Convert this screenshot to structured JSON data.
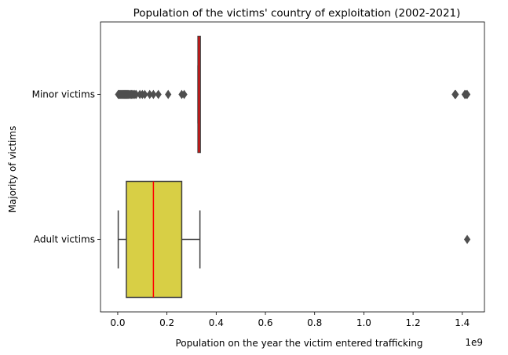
{
  "chart_data": {
    "type": "boxplot",
    "orientation": "horizontal",
    "title": "Population of the victims' country of exploitation (2002-2021)",
    "xlabel": "Population on the year the victim entered trafficking",
    "ylabel": "Majority of victims",
    "x_offset_label": "1e9",
    "x_scale": 1000000000,
    "xlim": [
      -0.07,
      1.49
    ],
    "xticks": [
      0.0,
      0.2,
      0.4,
      0.6,
      0.8,
      1.0,
      1.2,
      1.4
    ],
    "xtick_labels": [
      "0.0",
      "0.2",
      "0.4",
      "0.6",
      "0.8",
      "1.0",
      "1.2",
      "1.4"
    ],
    "categories": [
      "Minor victims",
      "Adult victims"
    ],
    "boxes": [
      {
        "category": "Minor victims",
        "color": "#d62728",
        "median_color": "#ff0000",
        "whisker_low": 0.326,
        "q1": 0.326,
        "median": 0.33,
        "q3": 0.334,
        "whisker_high": 0.334,
        "outliers": [
          0.002,
          0.005,
          0.008,
          0.011,
          0.014,
          0.017,
          0.02,
          0.023,
          0.026,
          0.029,
          0.032,
          0.035,
          0.038,
          0.041,
          0.044,
          0.048,
          0.052,
          0.056,
          0.06,
          0.065,
          0.07,
          0.075,
          0.09,
          0.1,
          0.11,
          0.13,
          0.145,
          0.165,
          0.205,
          0.26,
          0.27,
          1.37,
          1.373,
          1.41,
          1.415,
          1.42
        ]
      },
      {
        "category": "Adult victims",
        "color": "#d8cf45",
        "median_color": "#ff0000",
        "whisker_low": 0.002,
        "q1": 0.035,
        "median": 0.145,
        "q3": 0.26,
        "whisker_high": 0.334,
        "outliers": [
          1.42
        ]
      }
    ],
    "grid": false,
    "legend": "none"
  }
}
